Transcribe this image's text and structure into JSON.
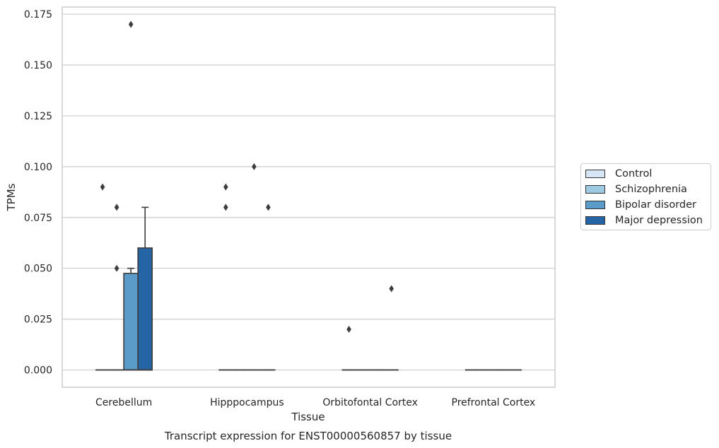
{
  "chart_data": {
    "type": "box",
    "title": "",
    "caption": "Transcript expression for ENST00000560857 by tissue",
    "xlabel": "Tissue",
    "ylabel": "TPMs",
    "categories": [
      "Cerebellum",
      "Hipppocampus",
      "Orbitofontal Cortex",
      "Prefrontal Cortex"
    ],
    "ylim": [
      -0.0085,
      0.1785
    ],
    "yticks": [
      "0.000",
      "0.025",
      "0.050",
      "0.075",
      "0.100",
      "0.125",
      "0.150",
      "0.175"
    ],
    "grid": true,
    "legend_position": "right",
    "series": [
      {
        "name": "Control",
        "color": "#d6e6f4",
        "boxes": [
          {
            "q1": 0,
            "median": 0,
            "q3": 0,
            "whisker_low": 0,
            "whisker_high": 0,
            "outliers": [
              0.09
            ]
          },
          {
            "q1": 0,
            "median": 0,
            "q3": 0,
            "whisker_low": 0,
            "whisker_high": 0,
            "outliers": [
              0.09,
              0.08
            ]
          },
          {
            "q1": 0,
            "median": 0,
            "q3": 0,
            "whisker_low": 0,
            "whisker_high": 0,
            "outliers": [
              0.02
            ]
          },
          {
            "q1": 0,
            "median": 0,
            "q3": 0,
            "whisker_low": 0,
            "whisker_high": 0,
            "outliers": []
          }
        ]
      },
      {
        "name": "Schizophrenia",
        "color": "#9ecae1",
        "boxes": [
          {
            "q1": 0,
            "median": 0,
            "q3": 0,
            "whisker_low": 0,
            "whisker_high": 0,
            "outliers": [
              0.08,
              0.05
            ]
          },
          {
            "q1": 0,
            "median": 0,
            "q3": 0,
            "whisker_low": 0,
            "whisker_high": 0,
            "outliers": []
          },
          {
            "q1": 0,
            "median": 0,
            "q3": 0,
            "whisker_low": 0,
            "whisker_high": 0,
            "outliers": []
          },
          {
            "q1": 0,
            "median": 0,
            "q3": 0,
            "whisker_low": 0,
            "whisker_high": 0,
            "outliers": []
          }
        ]
      },
      {
        "name": "Bipolar disorder",
        "color": "#5b9bc9",
        "boxes": [
          {
            "q1": 0,
            "median": 0,
            "q3": 0.0475,
            "whisker_low": 0,
            "whisker_high": 0.05,
            "outliers": [
              0.17
            ]
          },
          {
            "q1": 0,
            "median": 0,
            "q3": 0,
            "whisker_low": 0,
            "whisker_high": 0,
            "outliers": [
              0.1
            ]
          },
          {
            "q1": 0,
            "median": 0,
            "q3": 0,
            "whisker_low": 0,
            "whisker_high": 0,
            "outliers": []
          },
          {
            "q1": 0,
            "median": 0,
            "q3": 0,
            "whisker_low": 0,
            "whisker_high": 0,
            "outliers": []
          }
        ]
      },
      {
        "name": "Major depression",
        "color": "#2565a5",
        "boxes": [
          {
            "q1": 0,
            "median": 0,
            "q3": 0.06,
            "whisker_low": 0,
            "whisker_high": 0.08,
            "outliers": []
          },
          {
            "q1": 0,
            "median": 0,
            "q3": 0,
            "whisker_low": 0,
            "whisker_high": 0,
            "outliers": [
              0.08
            ]
          },
          {
            "q1": 0,
            "median": 0,
            "q3": 0,
            "whisker_low": 0,
            "whisker_high": 0,
            "outliers": [
              0.04
            ]
          },
          {
            "q1": 0,
            "median": 0,
            "q3": 0,
            "whisker_low": 0,
            "whisker_high": 0,
            "outliers": []
          }
        ]
      }
    ]
  },
  "legend": {
    "items": [
      {
        "label": "Control",
        "color": "#d6e6f4"
      },
      {
        "label": "Schizophrenia",
        "color": "#9ecae1"
      },
      {
        "label": "Bipolar disorder",
        "color": "#5b9bc9"
      },
      {
        "label": "Major depression",
        "color": "#2565a5"
      }
    ]
  }
}
